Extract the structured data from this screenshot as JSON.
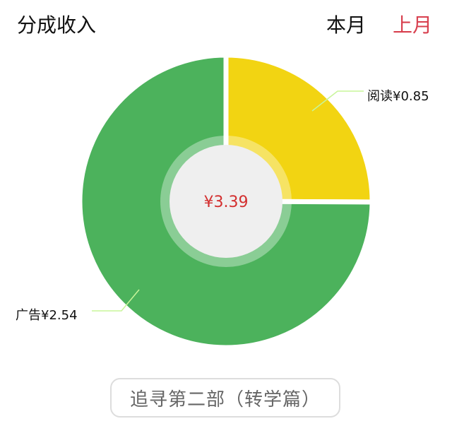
{
  "header": {
    "title": "分成收入",
    "tabs": [
      {
        "label": "本月",
        "active": false
      },
      {
        "label": "上月",
        "active": true
      }
    ]
  },
  "colors": {
    "active_tab": "#d8404f",
    "center_text": "#d32f2f"
  },
  "chart_data": {
    "type": "pie",
    "donut": true,
    "center_label": "¥3.39",
    "slices": [
      {
        "name": "阅读",
        "label": "阅读¥0.85",
        "value": 0.85,
        "color": "#f2d412"
      },
      {
        "name": "广告",
        "label": "广告¥2.54",
        "value": 2.54,
        "color": "#4cb25c"
      }
    ]
  },
  "footer": {
    "book_button": "追寻第二部（转学篇）"
  }
}
